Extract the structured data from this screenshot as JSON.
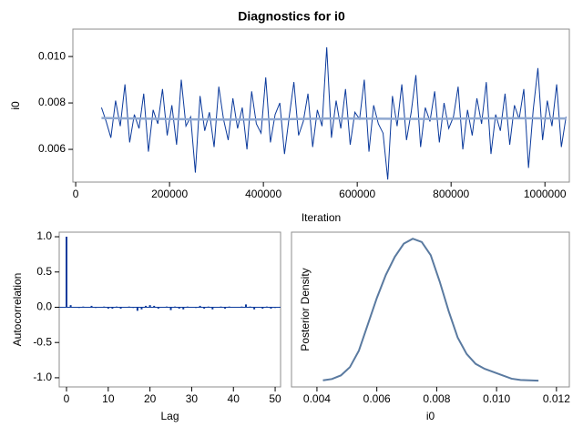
{
  "chart_data": [
    {
      "type": "line",
      "title": "Diagnostics for i0",
      "x_label": "Iteration",
      "y_label": "i0",
      "color": "#0b3a9c",
      "x": [
        55000,
        65000,
        75000,
        85000,
        95000,
        105000,
        115000,
        125000,
        135000,
        145000,
        155000,
        165000,
        175000,
        185000,
        195000,
        205000,
        215000,
        225000,
        235000,
        245000,
        255000,
        265000,
        275000,
        285000,
        295000,
        305000,
        315000,
        325000,
        335000,
        345000,
        355000,
        365000,
        375000,
        385000,
        395000,
        405000,
        415000,
        425000,
        435000,
        445000,
        455000,
        465000,
        475000,
        485000,
        495000,
        505000,
        515000,
        525000,
        535000,
        545000,
        555000,
        565000,
        575000,
        585000,
        595000,
        605000,
        615000,
        625000,
        635000,
        645000,
        655000,
        665000,
        675000,
        685000,
        695000,
        705000,
        715000,
        725000,
        735000,
        745000,
        755000,
        765000,
        775000,
        785000,
        795000,
        805000,
        815000,
        825000,
        835000,
        845000,
        855000,
        865000,
        875000,
        885000,
        895000,
        905000,
        915000,
        925000,
        935000,
        945000,
        955000,
        965000,
        975000,
        985000,
        995000,
        1005000,
        1015000,
        1025000,
        1035000,
        1045000
      ],
      "values": [
        0.0078,
        0.0072,
        0.0065,
        0.0081,
        0.007,
        0.0088,
        0.0063,
        0.0075,
        0.0069,
        0.0084,
        0.0059,
        0.0077,
        0.0071,
        0.0086,
        0.0066,
        0.0079,
        0.0062,
        0.009,
        0.007,
        0.0074,
        0.005,
        0.0083,
        0.0068,
        0.0076,
        0.0061,
        0.0087,
        0.0073,
        0.0064,
        0.0082,
        0.0069,
        0.0078,
        0.006,
        0.0085,
        0.0071,
        0.0067,
        0.0091,
        0.0063,
        0.0075,
        0.008,
        0.0058,
        0.0074,
        0.0089,
        0.0066,
        0.0072,
        0.0084,
        0.0061,
        0.0077,
        0.007,
        0.0104,
        0.0065,
        0.0081,
        0.0069,
        0.0086,
        0.0062,
        0.0076,
        0.0073,
        0.009,
        0.0059,
        0.0079,
        0.0071,
        0.0067,
        0.0047,
        0.0083,
        0.007,
        0.0088,
        0.0064,
        0.0076,
        0.0092,
        0.0061,
        0.0078,
        0.0072,
        0.0085,
        0.0063,
        0.008,
        0.0069,
        0.0074,
        0.0087,
        0.006,
        0.0077,
        0.0066,
        0.0082,
        0.0071,
        0.0089,
        0.0058,
        0.0075,
        0.0068,
        0.0084,
        0.0062,
        0.0079,
        0.0073,
        0.0086,
        0.0052,
        0.0077,
        0.0095,
        0.0064,
        0.0081,
        0.007,
        0.0088,
        0.0061,
        0.0074
      ],
      "smooth": {
        "color": "#8fa8d0",
        "x": [
          55000,
          154000,
          253000,
          352000,
          451000,
          550000,
          649000,
          748000,
          847000,
          946000,
          1045000
        ],
        "values": [
          0.00735,
          0.00732,
          0.00729,
          0.00728,
          0.0073,
          0.00733,
          0.00732,
          0.00731,
          0.00733,
          0.00734,
          0.00733
        ]
      },
      "xlim": [
        -6000,
        1052000
      ],
      "xticks": [
        0,
        200000,
        400000,
        600000,
        800000,
        1000000
      ],
      "ylim": [
        0.00459,
        0.01118
      ],
      "yticks": [
        {
          "value": 0.01,
          "label": "0.010"
        },
        0.008,
        0.006
      ]
    },
    {
      "type": "needle",
      "x_label": "Lag",
      "y_label": "Autocorrelation",
      "color": "#0b3a9c",
      "x": [
        0,
        1,
        2,
        3,
        4,
        5,
        6,
        7,
        8,
        9,
        10,
        11,
        12,
        13,
        14,
        15,
        16,
        17,
        18,
        19,
        20,
        21,
        22,
        23,
        24,
        25,
        26,
        27,
        28,
        29,
        30,
        31,
        32,
        33,
        34,
        35,
        36,
        37,
        38,
        39,
        40,
        41,
        42,
        43,
        44,
        45,
        46,
        47,
        48,
        49,
        50
      ],
      "values": [
        1,
        0.03,
        0,
        -0.01,
        0.01,
        0,
        0.02,
        -0.01,
        0,
        0.01,
        -0.02,
        -0.02,
        0.01,
        -0.02,
        0,
        0.01,
        -0.01,
        -0.05,
        -0.03,
        0.02,
        0.03,
        0.02,
        -0.02,
        0,
        0.01,
        -0.04,
        0.01,
        -0.02,
        -0.03,
        0.01,
        0,
        -0.01,
        0.02,
        -0.02,
        0.01,
        -0.03,
        0,
        0.01,
        -0.02,
        0.01,
        0,
        0,
        0.01,
        0.04,
        0.01,
        -0.03,
        0,
        -0.02,
        0.01,
        -0.02,
        -0.01
      ],
      "xlim": [
        -1.75,
        51.3
      ],
      "xticks": [
        0,
        10,
        20,
        30,
        40,
        50
      ],
      "ylim": [
        -1.13,
        1.065
      ],
      "yticks": [
        {
          "value": 1,
          "label": "1.0"
        },
        0.5,
        {
          "value": 0,
          "label": "0.0"
        },
        -0.5,
        {
          "value": -1,
          "label": "-1.0"
        }
      ]
    },
    {
      "type": "line",
      "x_label": "i0",
      "y_label": "Posterior Density",
      "color": "#5a7aa0",
      "x": [
        0.0042,
        0.0045,
        0.0048,
        0.0051,
        0.0054,
        0.0057,
        0.006,
        0.0063,
        0.0066,
        0.0069,
        0.0072,
        0.0075,
        0.0078,
        0.0081,
        0.0084,
        0.0087,
        0.009,
        0.0093,
        0.0096,
        0.0099,
        0.0102,
        0.0105,
        0.0108,
        0.0111,
        0.0114
      ],
      "values": [
        20,
        24,
        35,
        60,
        110,
        190,
        270,
        340,
        395,
        435,
        450,
        440,
        400,
        320,
        230,
        150,
        100,
        70,
        55,
        45,
        35,
        25,
        21,
        20,
        19
      ],
      "xlim": [
        0.00315,
        0.01243
      ],
      "xticks": [
        0.004,
        0.006,
        0.008,
        {
          "value": 0.01,
          "label": "0.010"
        },
        0.012
      ],
      "ylim": [
        0,
        470
      ]
    }
  ]
}
